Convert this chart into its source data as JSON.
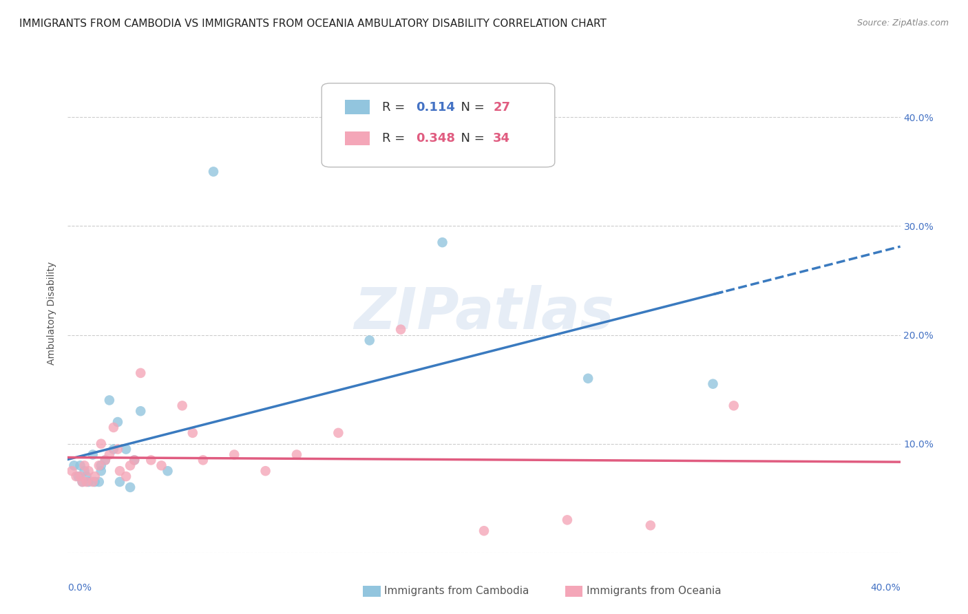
{
  "title": "IMMIGRANTS FROM CAMBODIA VS IMMIGRANTS FROM OCEANIA AMBULATORY DISABILITY CORRELATION CHART",
  "source": "Source: ZipAtlas.com",
  "ylabel": "Ambulatory Disability",
  "xlim": [
    0.0,
    0.4
  ],
  "ylim": [
    0.0,
    0.44
  ],
  "ytick_values": [
    0.0,
    0.1,
    0.2,
    0.3,
    0.4
  ],
  "ytick_labels": [
    "",
    "10.0%",
    "20.0%",
    "30.0%",
    "40.0%"
  ],
  "xtick_values": [
    0.0,
    0.1,
    0.2,
    0.3,
    0.4
  ],
  "color_cambodia": "#92c5de",
  "color_oceania": "#f4a6b8",
  "line_color_cambodia": "#3a7abf",
  "line_color_oceania": "#e05c80",
  "background_color": "#ffffff",
  "grid_color": "#cccccc",
  "cambodia_x": [
    0.003,
    0.005,
    0.006,
    0.007,
    0.008,
    0.009,
    0.01,
    0.012,
    0.013,
    0.015,
    0.016,
    0.016,
    0.018,
    0.02,
    0.022,
    0.024,
    0.025,
    0.028,
    0.03,
    0.032,
    0.035,
    0.048,
    0.07,
    0.145,
    0.18,
    0.25,
    0.31
  ],
  "cambodia_y": [
    0.08,
    0.07,
    0.08,
    0.065,
    0.075,
    0.07,
    0.065,
    0.09,
    0.065,
    0.065,
    0.075,
    0.08,
    0.085,
    0.14,
    0.095,
    0.12,
    0.065,
    0.095,
    0.06,
    0.085,
    0.13,
    0.075,
    0.35,
    0.195,
    0.285,
    0.16,
    0.155
  ],
  "oceania_x": [
    0.002,
    0.004,
    0.006,
    0.007,
    0.008,
    0.009,
    0.01,
    0.012,
    0.013,
    0.015,
    0.016,
    0.018,
    0.02,
    0.022,
    0.024,
    0.025,
    0.028,
    0.03,
    0.032,
    0.035,
    0.04,
    0.045,
    0.055,
    0.06,
    0.065,
    0.08,
    0.095,
    0.11,
    0.13,
    0.16,
    0.2,
    0.24,
    0.28,
    0.32
  ],
  "oceania_y": [
    0.075,
    0.07,
    0.07,
    0.065,
    0.08,
    0.065,
    0.075,
    0.065,
    0.07,
    0.08,
    0.1,
    0.085,
    0.09,
    0.115,
    0.095,
    0.075,
    0.07,
    0.08,
    0.085,
    0.165,
    0.085,
    0.08,
    0.135,
    0.11,
    0.085,
    0.09,
    0.075,
    0.09,
    0.11,
    0.205,
    0.02,
    0.03,
    0.025,
    0.135
  ],
  "title_fontsize": 11,
  "axis_fontsize": 10,
  "legend_fontsize": 13,
  "watermark_text": "ZIPatlas",
  "r1": "0.114",
  "n1": "27",
  "r2": "0.348",
  "n2": "34"
}
